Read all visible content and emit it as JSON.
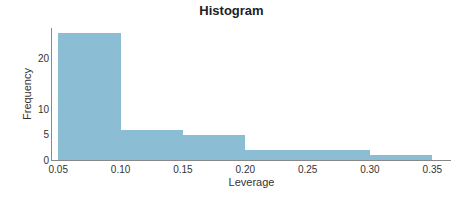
{
  "chart_data": {
    "type": "histogram",
    "title": "Histogram",
    "xlabel": "Leverage",
    "ylabel": "Frequency",
    "bins": [
      0.05,
      0.1,
      0.15,
      0.2,
      0.25,
      0.3,
      0.35
    ],
    "values": [
      25,
      6,
      5,
      2,
      2,
      1
    ],
    "color": "#8bbdd4",
    "xlim": [
      0.045,
      0.365
    ],
    "xticks": [
      0.05,
      {
        "value": 0.1,
        "label": "0.10"
      },
      0.15,
      {
        "value": 0.2,
        "label": "0.20"
      },
      0.25,
      {
        "value": 0.3,
        "label": "0.30"
      },
      0.35
    ],
    "ylim": [
      0,
      26
    ],
    "yticks": [
      0,
      5,
      10,
      20
    ],
    "grid": false
  }
}
